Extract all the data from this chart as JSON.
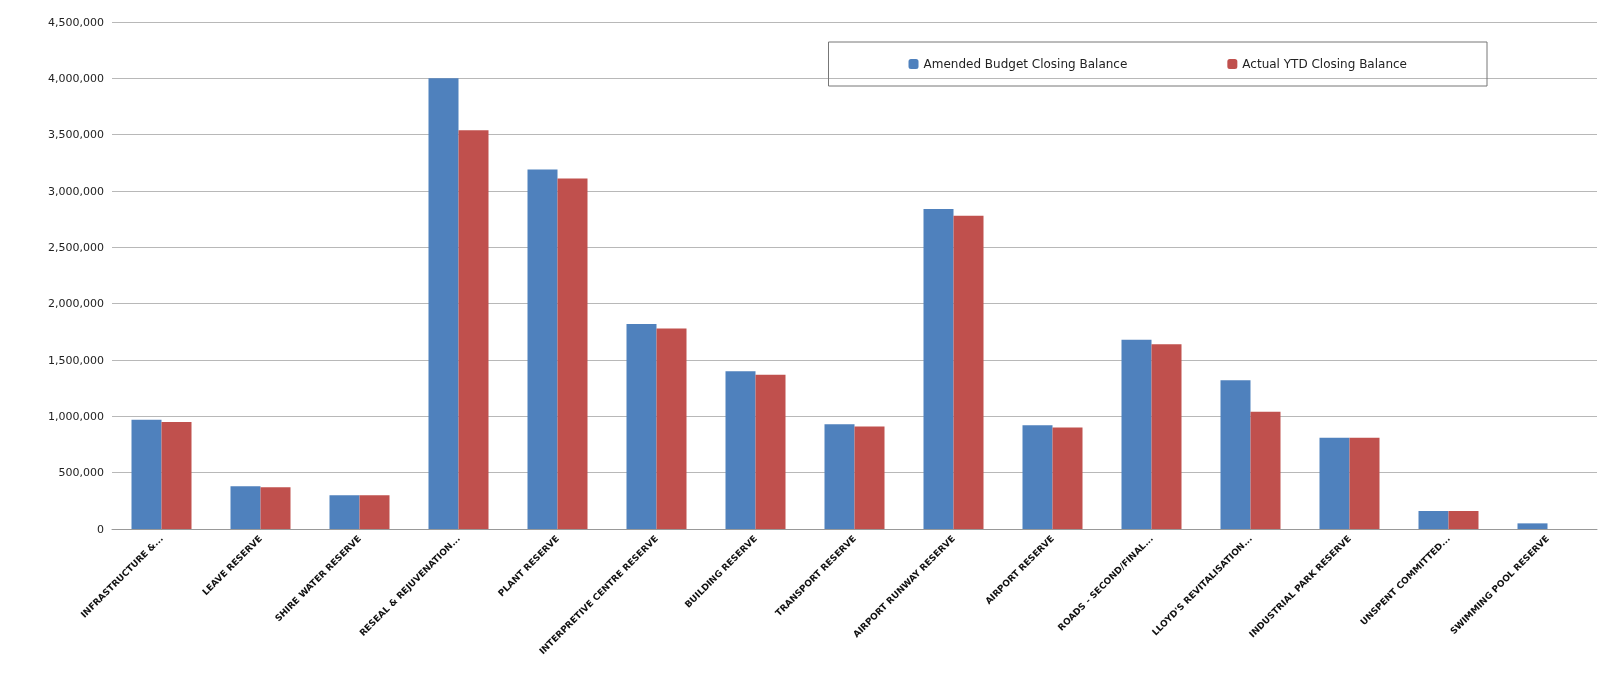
{
  "chart_data": {
    "type": "bar",
    "categories": [
      "INFRASTRUCTURE &...",
      "LEAVE RESERVE",
      "SHIRE WATER RESERVE",
      "RESEAL & REJUVENATION...",
      "PLANT RESERVE",
      "INTERPRETIVE CENTRE RESERVE",
      "BUILDING RESERVE",
      "TRANSPORT RESERVE",
      "AIRPORT RUNWAY RESERVE",
      "AIRPORT RESERVE",
      "ROADS - SECOND/FINAL...",
      "LLOYD'S REVITALISATION...",
      "INDUSTRIAL PARK RESERVE",
      "UNSPENT COMMITTED...",
      "SWIMMING POOL RESERVE"
    ],
    "series": [
      {
        "name": "Amended Budget Closing Balance",
        "color": "#4f81bd",
        "values": [
          970000,
          380000,
          300000,
          4000000,
          3190000,
          1820000,
          1400000,
          930000,
          2840000,
          920000,
          1680000,
          1320000,
          810000,
          160000,
          50000
        ]
      },
      {
        "name": "Actual YTD Closing Balance",
        "color": "#c0504d",
        "values": [
          950000,
          370000,
          300000,
          3540000,
          3110000,
          1780000,
          1370000,
          910000,
          2780000,
          900000,
          1640000,
          1040000,
          810000,
          160000,
          0
        ]
      }
    ],
    "ylim": [
      0,
      4500000
    ],
    "yticks": [
      {
        "value": 0,
        "label": "0"
      },
      {
        "value": 500000,
        "label": "500,000"
      },
      {
        "value": 1000000,
        "label": "1,000,000"
      },
      {
        "value": 1500000,
        "label": "1,500,000"
      },
      {
        "value": 2000000,
        "label": "2,000,000"
      },
      {
        "value": 2500000,
        "label": "2,500,000"
      },
      {
        "value": 3000000,
        "label": "3,000,000"
      },
      {
        "value": 3500000,
        "label": "3,500,000"
      },
      {
        "value": 4000000,
        "label": "4,000,000"
      },
      {
        "value": 4500000,
        "label": "4,500,000"
      }
    ],
    "grid": "y",
    "legend": "top right"
  }
}
